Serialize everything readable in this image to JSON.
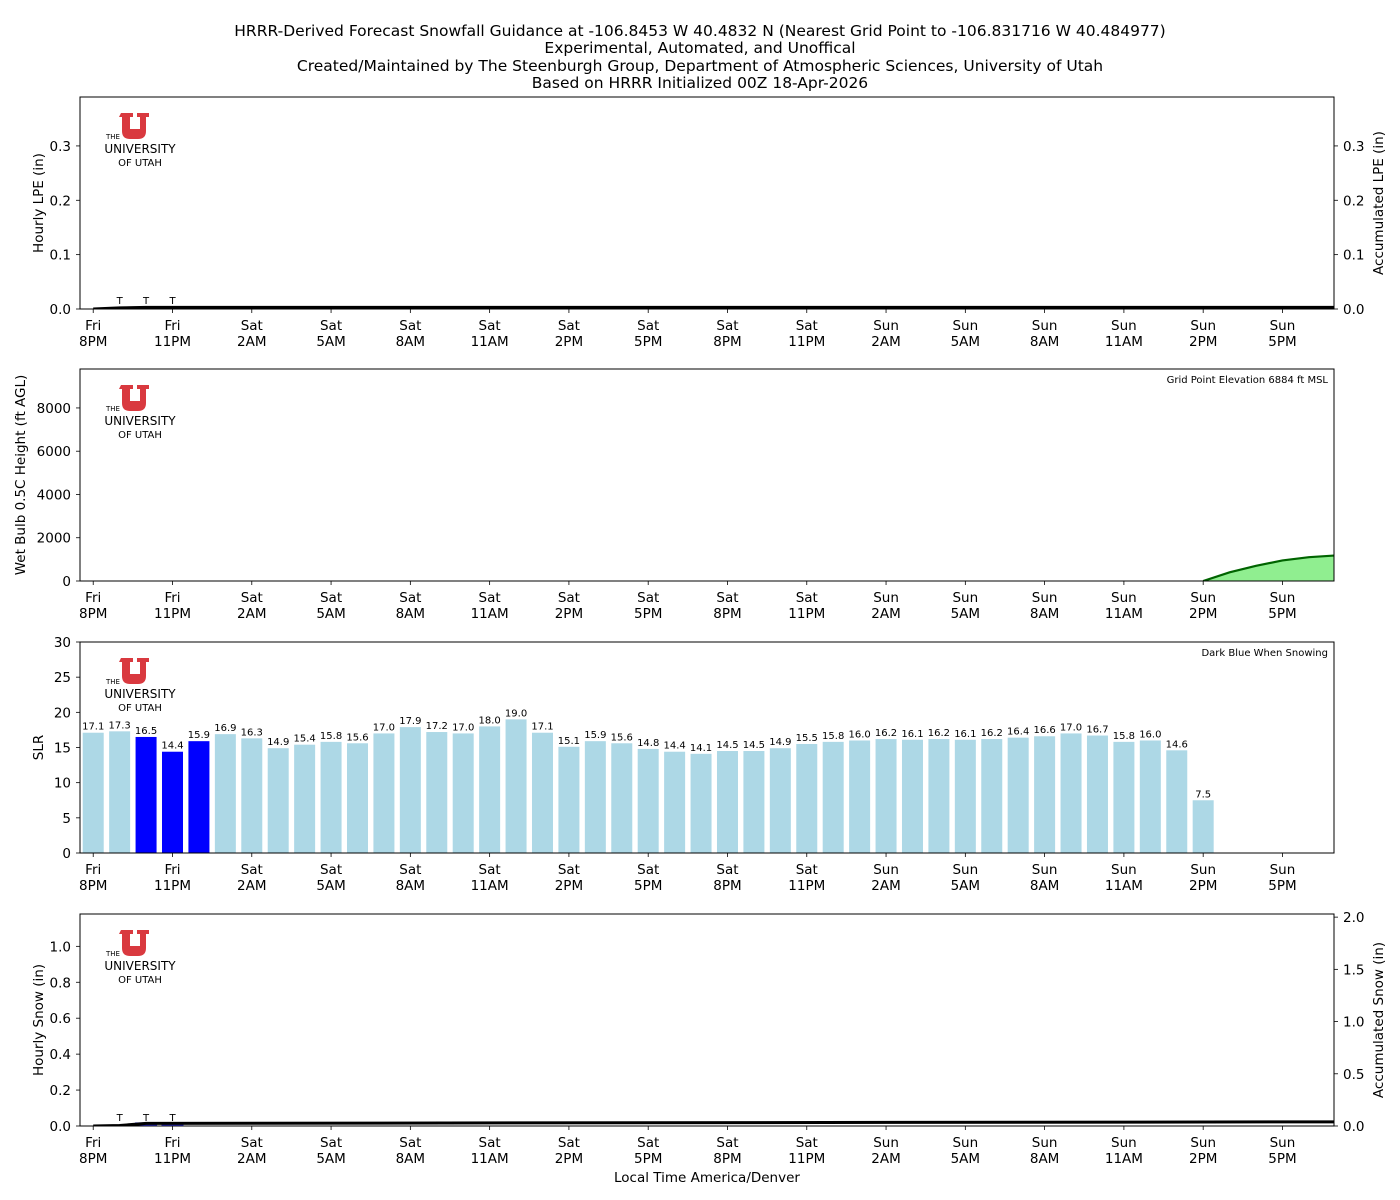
{
  "titles": [
    "HRRR-Derived Forecast Snowfall Guidance at -106.8453 W 40.4832 N (Nearest Grid Point to -106.831716 W 40.484977)",
    "Experimental, Automated, and Unoffical",
    "Created/Maintained by The Steenburgh Group, Department of Atmospheric Sciences, University of Utah",
    "Based on HRRR Initialized 00Z 18-Apr-2026"
  ],
  "logo": {
    "line1": "THE",
    "line2": "UNIVERSITY",
    "line3": "OF UTAH",
    "color": "#d9393f"
  },
  "xlabel": "Local Time America/Denver",
  "time_ticks": [
    {
      "day": "Fri",
      "time": "8PM"
    },
    {
      "day": "Fri",
      "time": "11PM"
    },
    {
      "day": "Sat",
      "time": "2AM"
    },
    {
      "day": "Sat",
      "time": "5AM"
    },
    {
      "day": "Sat",
      "time": "8AM"
    },
    {
      "day": "Sat",
      "time": "11AM"
    },
    {
      "day": "Sat",
      "time": "2PM"
    },
    {
      "day": "Sat",
      "time": "5PM"
    },
    {
      "day": "Sat",
      "time": "8PM"
    },
    {
      "day": "Sat",
      "time": "11PM"
    },
    {
      "day": "Sun",
      "time": "2AM"
    },
    {
      "day": "Sun",
      "time": "5AM"
    },
    {
      "day": "Sun",
      "time": "8AM"
    },
    {
      "day": "Sun",
      "time": "11AM"
    },
    {
      "day": "Sun",
      "time": "2PM"
    },
    {
      "day": "Sun",
      "time": "5PM"
    }
  ],
  "chart_data": [
    {
      "type": "bar",
      "id": "lpe",
      "ylabel": "Hourly LPE (in)",
      "y2label": "Accumulated LPE (in)",
      "ylim": [
        0,
        0.39
      ],
      "yticks": [
        "0.0",
        "0.1",
        "0.2",
        "0.3"
      ],
      "y2lim": [
        0,
        0.39
      ],
      "y2ticks": [
        "0.0",
        "0.1",
        "0.2",
        "0.3"
      ],
      "x_hours": [
        1,
        2,
        3
      ],
      "trace_labels": [
        "T",
        "T",
        "T"
      ],
      "values": [
        0.001,
        0.001,
        0.001
      ],
      "accumulated": {
        "x_start": 0,
        "x_end": 46.95,
        "values": [
          0.0,
          0.002,
          0.003,
          0.003
        ]
      },
      "bar_color": "#0000ff"
    },
    {
      "type": "area",
      "id": "wetbulb",
      "ylabel": "Wet Bulb 0.5C Height (ft AGL)",
      "ylim": [
        0,
        9800
      ],
      "yticks": [
        "0",
        "2000",
        "4000",
        "6000",
        "8000"
      ],
      "annotation": "Grid Point Elevation 6884 ft MSL",
      "x": [
        42,
        43,
        44,
        45,
        46,
        47
      ],
      "values": [
        0,
        400,
        700,
        950,
        1100,
        1180
      ],
      "fill_color": "#90ee90",
      "line_color": "#006400"
    },
    {
      "type": "bar",
      "id": "slr",
      "ylabel": "SLR",
      "ylim": [
        0,
        30
      ],
      "yticks": [
        "0",
        "5",
        "10",
        "15",
        "20",
        "25",
        "30"
      ],
      "annotation": "Dark Blue When Snowing",
      "labels": [
        "17.1",
        "17.3",
        "16.5",
        "14.4",
        "15.9",
        "16.9",
        "16.3",
        "14.9",
        "15.4",
        "15.8",
        "15.6",
        "17.0",
        "17.9",
        "17.2",
        "17.0",
        "18.0",
        "19.0",
        "17.1",
        "15.1",
        "15.9",
        "15.6",
        "14.8",
        "14.4",
        "14.1",
        "14.5",
        "14.5",
        "14.9",
        "15.5",
        "15.8",
        "16.0",
        "16.2",
        "16.1",
        "16.2",
        "16.1",
        "16.2",
        "16.4",
        "16.6",
        "17.0",
        "16.7",
        "15.8",
        "16.0",
        "14.6",
        "7.5"
      ],
      "values": [
        17.1,
        17.3,
        16.5,
        14.4,
        15.9,
        16.9,
        16.3,
        14.9,
        15.4,
        15.8,
        15.6,
        17.0,
        17.9,
        17.2,
        17.0,
        18.0,
        19.0,
        17.1,
        15.1,
        15.9,
        15.6,
        14.8,
        14.4,
        14.1,
        14.5,
        14.5,
        14.9,
        15.5,
        15.8,
        16.0,
        16.2,
        16.1,
        16.2,
        16.1,
        16.2,
        16.4,
        16.6,
        17.0,
        16.7,
        15.8,
        16.0,
        14.6,
        7.5
      ],
      "snowing_indices": [
        2,
        3,
        4
      ],
      "color_snowing": "#0000ff",
      "color_default": "#add8e6"
    },
    {
      "type": "bar",
      "id": "snow",
      "ylabel": "Hourly Snow (in)",
      "y2label": "Accumulated Snow (in)",
      "ylim": [
        0,
        1.18
      ],
      "yticks": [
        "0.0",
        "0.2",
        "0.4",
        "0.6",
        "0.8",
        "1.0"
      ],
      "y2lim": [
        0,
        2.03
      ],
      "y2ticks": [
        "0.0",
        "0.5",
        "1.0",
        "1.5",
        "2.0"
      ],
      "x_hours": [
        1,
        2,
        3
      ],
      "trace_labels": [
        "T",
        "T",
        "T"
      ],
      "values": [
        0.005,
        0.02,
        0.015
      ],
      "accumulated": {
        "x_start": 0,
        "x_end": 46.95,
        "values": [
          0.0,
          0.005,
          0.025,
          0.04
        ]
      },
      "bar_color": "#0000ff"
    }
  ]
}
